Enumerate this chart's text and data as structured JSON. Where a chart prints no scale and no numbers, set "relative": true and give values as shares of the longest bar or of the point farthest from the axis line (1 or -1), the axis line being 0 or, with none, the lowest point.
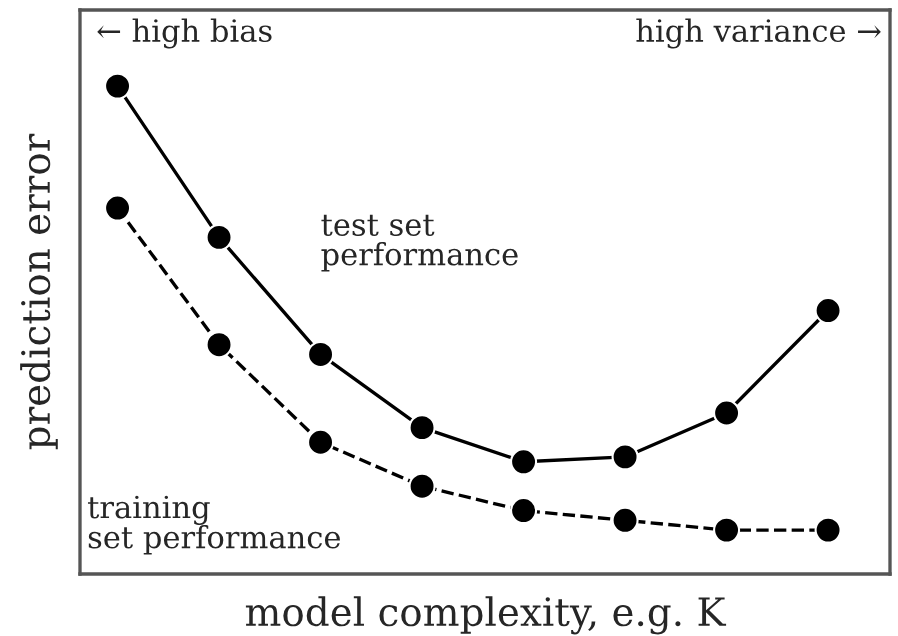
{
  "chart_data": {
    "type": "line",
    "relative": true,
    "xlabel": "model complexity, e.g. K",
    "ylabel": "prediction error",
    "categories": [
      null,
      null,
      null,
      null,
      null,
      null,
      null,
      null
    ],
    "series": [
      {
        "name": "test set\nperformance",
        "color": "#000000",
        "line_style": "solid",
        "marker": "circle",
        "values": [
          1,
          0.69,
          0.45,
          0.3,
          0.23,
          0.24,
          0.33,
          0.54
        ]
      },
      {
        "name": "training\nset performance",
        "color": "#000000",
        "line_style": "dashed",
        "marker": "circle",
        "values": [
          0.75,
          0.47,
          0.27,
          0.18,
          0.13,
          0.11,
          0.09,
          0.09
        ]
      }
    ],
    "annotations": [
      "← high bias",
      "high variance →"
    ]
  }
}
